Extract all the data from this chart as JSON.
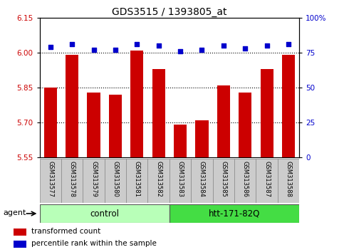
{
  "title": "GDS3515 / 1393805_at",
  "samples": [
    "GSM313577",
    "GSM313578",
    "GSM313579",
    "GSM313580",
    "GSM313581",
    "GSM313582",
    "GSM313583",
    "GSM313584",
    "GSM313585",
    "GSM313586",
    "GSM313587",
    "GSM313588"
  ],
  "bar_values": [
    5.85,
    5.99,
    5.83,
    5.82,
    6.01,
    5.93,
    5.69,
    5.71,
    5.86,
    5.83,
    5.93,
    5.99
  ],
  "percentile_values": [
    79,
    81,
    77,
    77,
    81,
    80,
    76,
    77,
    80,
    78,
    80,
    81
  ],
  "bar_color": "#cc0000",
  "dot_color": "#0000cc",
  "ylim_left": [
    5.55,
    6.15
  ],
  "ylim_right": [
    0,
    100
  ],
  "yticks_left": [
    5.55,
    5.7,
    5.85,
    6.0,
    6.15
  ],
  "yticks_right": [
    0,
    25,
    50,
    75,
    100
  ],
  "ylabel_left_color": "#cc0000",
  "ylabel_right_color": "#0000cc",
  "hlines": [
    6.0,
    5.85,
    5.7
  ],
  "groups": [
    {
      "label": "control",
      "start": 0,
      "end": 5,
      "color": "#b8ffb8"
    },
    {
      "label": "htt-171-82Q",
      "start": 6,
      "end": 11,
      "color": "#44dd44"
    }
  ],
  "agent_label": "agent",
  "legend": [
    {
      "label": "transformed count",
      "color": "#cc0000"
    },
    {
      "label": "percentile rank within the sample",
      "color": "#0000cc"
    }
  ],
  "bar_width": 0.6,
  "base_value": 5.55
}
